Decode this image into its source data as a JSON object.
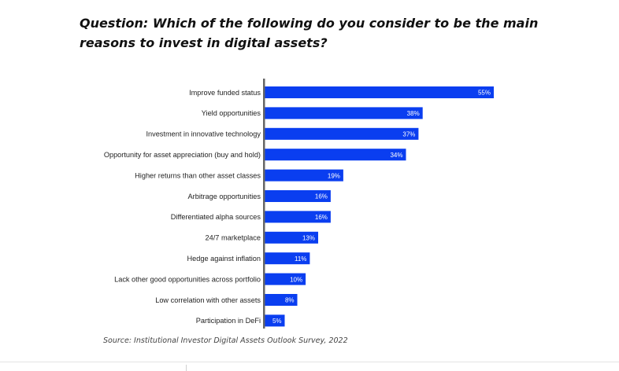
{
  "header": {
    "title": "Question: Which of the following do you consider to be the main reasons to invest in digital assets?"
  },
  "footer": {
    "source": "Source: Institutional Investor Digital Assets Outlook Survey, 2022"
  },
  "colors": {
    "bar": "#0a3ef0",
    "bar_label": "#ffffff",
    "axis": "#666666",
    "category_label": "#222222"
  },
  "chart_data": {
    "type": "bar",
    "orientation": "horizontal",
    "categories": [
      "Improve funded status",
      "Yield opportunities",
      "Investment in innovative technology",
      "Opportunity for asset appreciation (buy and hold)",
      "Higher returns than other asset classes",
      "Arbitrage opportunities",
      "Differentiated alpha sources",
      "24/7 marketplace",
      "Hedge against inflation",
      "Lack other good opportunities across portfolio",
      "Low correlation with other assets",
      "Participation in DeFi"
    ],
    "values": [
      55,
      38,
      37,
      34,
      19,
      16,
      16,
      13,
      11,
      10,
      8,
      5
    ],
    "value_labels": [
      "55%",
      "38%",
      "37%",
      "34%",
      "19%",
      "16%",
      "16%",
      "13%",
      "11%",
      "10%",
      "8%",
      "5%"
    ],
    "xlim": [
      0,
      55
    ],
    "grid": false,
    "legend": "none"
  }
}
